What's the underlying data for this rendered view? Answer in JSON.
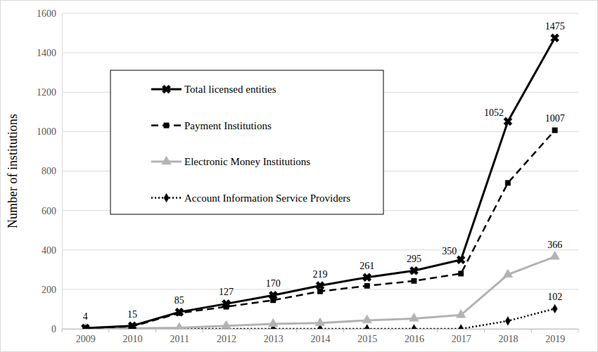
{
  "chart_data": {
    "type": "line",
    "y_label": "Number of institutions",
    "categories": [
      "2009",
      "2010",
      "2011",
      "2012",
      "2013",
      "2014",
      "2015",
      "2016",
      "2017",
      "2018",
      "2019"
    ],
    "ylim": [
      0,
      1600
    ],
    "yticks": [
      0,
      200,
      400,
      600,
      800,
      1000,
      1200,
      1400,
      1600
    ],
    "grid": true,
    "legend": "upper left",
    "data_labels": true,
    "series": [
      {
        "name": "Total licensed entities",
        "color": "#000000",
        "line_style": "solid",
        "marker": "x",
        "values": [
          4,
          15,
          85,
          127,
          170,
          219,
          261,
          295,
          350,
          1052,
          1475
        ],
        "value_labels": [
          "4",
          "15",
          "85",
          "127",
          "170",
          "219",
          "261",
          "295",
          "350",
          "1052",
          "1475"
        ]
      },
      {
        "name": "Payment Institutions",
        "color": "#000000",
        "line_style": "dashed",
        "marker": "square",
        "values": [
          4,
          12,
          80,
          112,
          145,
          190,
          218,
          243,
          280,
          740,
          1007
        ],
        "value_labels": [
          null,
          null,
          null,
          null,
          null,
          null,
          null,
          null,
          null,
          null,
          "1007"
        ]
      },
      {
        "name": "Electronic Money Institutions",
        "color": "#b3b3b3",
        "line_style": "solid",
        "marker": "triangle",
        "values": [
          0,
          3,
          5,
          15,
          25,
          29,
          43,
          52,
          70,
          275,
          366
        ],
        "value_labels": [
          null,
          null,
          null,
          null,
          null,
          null,
          null,
          null,
          null,
          null,
          "366"
        ]
      },
      {
        "name": "Account Information Service Providers",
        "color": "#000000",
        "line_style": "dotted",
        "marker": "diamond",
        "values": [
          0,
          0,
          0,
          0,
          0,
          0,
          0,
          0,
          0,
          40,
          102
        ],
        "value_labels": [
          null,
          null,
          null,
          null,
          null,
          null,
          null,
          null,
          null,
          null,
          "102"
        ]
      }
    ]
  }
}
